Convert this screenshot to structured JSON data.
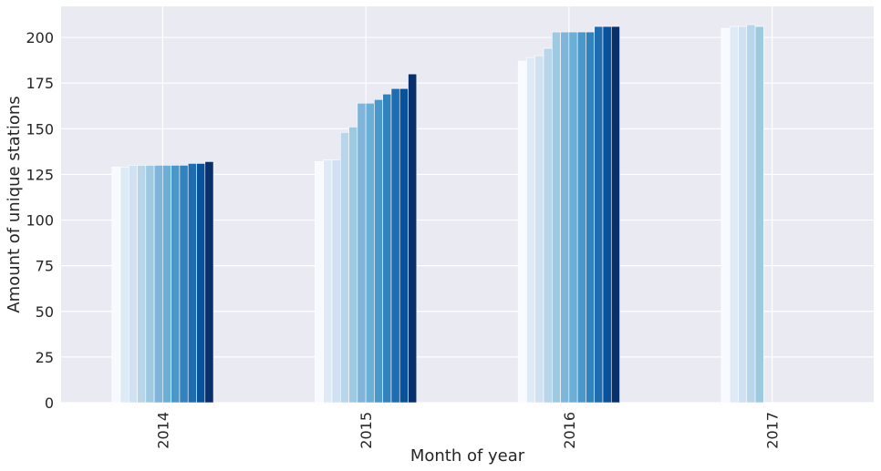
{
  "chart_data": {
    "type": "bar",
    "title": "",
    "xlabel": "Month of year",
    "ylabel": "Amount of unique stations",
    "categories": [
      "2014",
      "2015",
      "2016",
      "2017"
    ],
    "ylim": [
      0,
      217
    ],
    "yticks": [
      0,
      25,
      50,
      75,
      100,
      125,
      150,
      175,
      200
    ],
    "grid": true,
    "background": "#eaeaf2",
    "grid_color": "#ffffff",
    "palette": [
      "#f7fbff",
      "#deebf7",
      "#cfe1f2",
      "#b8d5ea",
      "#9ecae1",
      "#7fb5da",
      "#6baed6",
      "#4a97c9",
      "#3182bd",
      "#1f6db1",
      "#08519c",
      "#08306b"
    ],
    "series": [
      {
        "values": [
          129,
          132,
          187,
          205
        ]
      },
      {
        "values": [
          129,
          133,
          189,
          206
        ]
      },
      {
        "values": [
          130,
          133,
          190,
          206
        ]
      },
      {
        "values": [
          130,
          148,
          194,
          207
        ]
      },
      {
        "values": [
          130,
          151,
          203,
          206
        ]
      },
      {
        "values": [
          130,
          164,
          203,
          null
        ]
      },
      {
        "values": [
          130,
          164,
          203,
          null
        ]
      },
      {
        "values": [
          130,
          166,
          203,
          null
        ]
      },
      {
        "values": [
          130,
          169,
          203,
          null
        ]
      },
      {
        "values": [
          131,
          172,
          206,
          null
        ]
      },
      {
        "values": [
          131,
          172,
          206,
          null
        ]
      },
      {
        "values": [
          132,
          180,
          206,
          null
        ]
      }
    ]
  }
}
